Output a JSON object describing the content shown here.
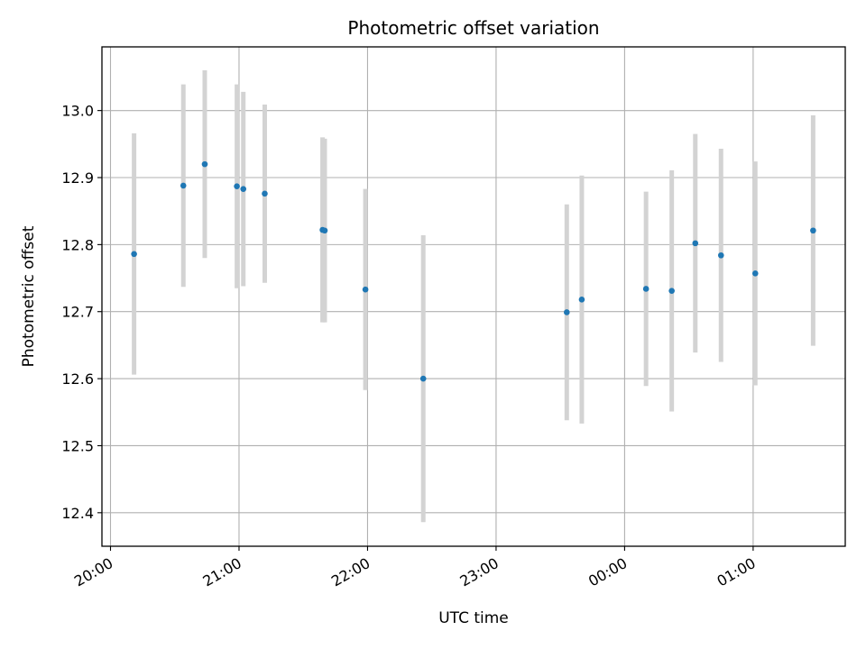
{
  "chart_data": {
    "type": "scatter",
    "title": "Photometric offset variation",
    "xlabel": "UTC time",
    "ylabel": "Photometric offset",
    "x_axis_kind": "time",
    "x_tick_labels": [
      "20:00",
      "21:00",
      "22:00",
      "23:00",
      "00:00",
      "01:00"
    ],
    "x_tick_times": [
      "20:00",
      "21:00",
      "22:00",
      "23:00",
      "24:00",
      "25:00"
    ],
    "xlim": [
      "19:56",
      "25:43"
    ],
    "y_ticks": [
      12.4,
      12.5,
      12.6,
      12.7,
      12.8,
      12.9,
      13.0
    ],
    "ylim": [
      12.35,
      13.095
    ],
    "grid": true,
    "point_color": "#1f77b4",
    "errorbar_color": "#d3d3d3",
    "series": [
      {
        "points": [
          {
            "t": "20:11",
            "y": 12.786,
            "err": 0.18
          },
          {
            "t": "20:34",
            "y": 12.888,
            "err": 0.151
          },
          {
            "t": "20:44",
            "y": 12.92,
            "err": 0.14
          },
          {
            "t": "20:59",
            "y": 12.887,
            "err": 0.152
          },
          {
            "t": "21:02",
            "y": 12.883,
            "err": 0.145
          },
          {
            "t": "21:12",
            "y": 12.876,
            "err": 0.133
          },
          {
            "t": "21:39",
            "y": 12.822,
            "err": 0.138
          },
          {
            "t": "21:40",
            "y": 12.821,
            "err": 0.137
          },
          {
            "t": "21:59",
            "y": 12.733,
            "err": 0.15
          },
          {
            "t": "22:26",
            "y": 12.6,
            "err": 0.214
          },
          {
            "t": "23:33",
            "y": 12.699,
            "err": 0.161
          },
          {
            "t": "23:40",
            "y": 12.718,
            "err": 0.185
          },
          {
            "t": "24:10",
            "y": 12.734,
            "err": 0.145
          },
          {
            "t": "24:22",
            "y": 12.731,
            "err": 0.18
          },
          {
            "t": "24:33",
            "y": 12.802,
            "err": 0.163
          },
          {
            "t": "24:45",
            "y": 12.784,
            "err": 0.159
          },
          {
            "t": "25:01",
            "y": 12.757,
            "err": 0.167
          },
          {
            "t": "25:28",
            "y": 12.821,
            "err": 0.172
          }
        ]
      }
    ]
  }
}
